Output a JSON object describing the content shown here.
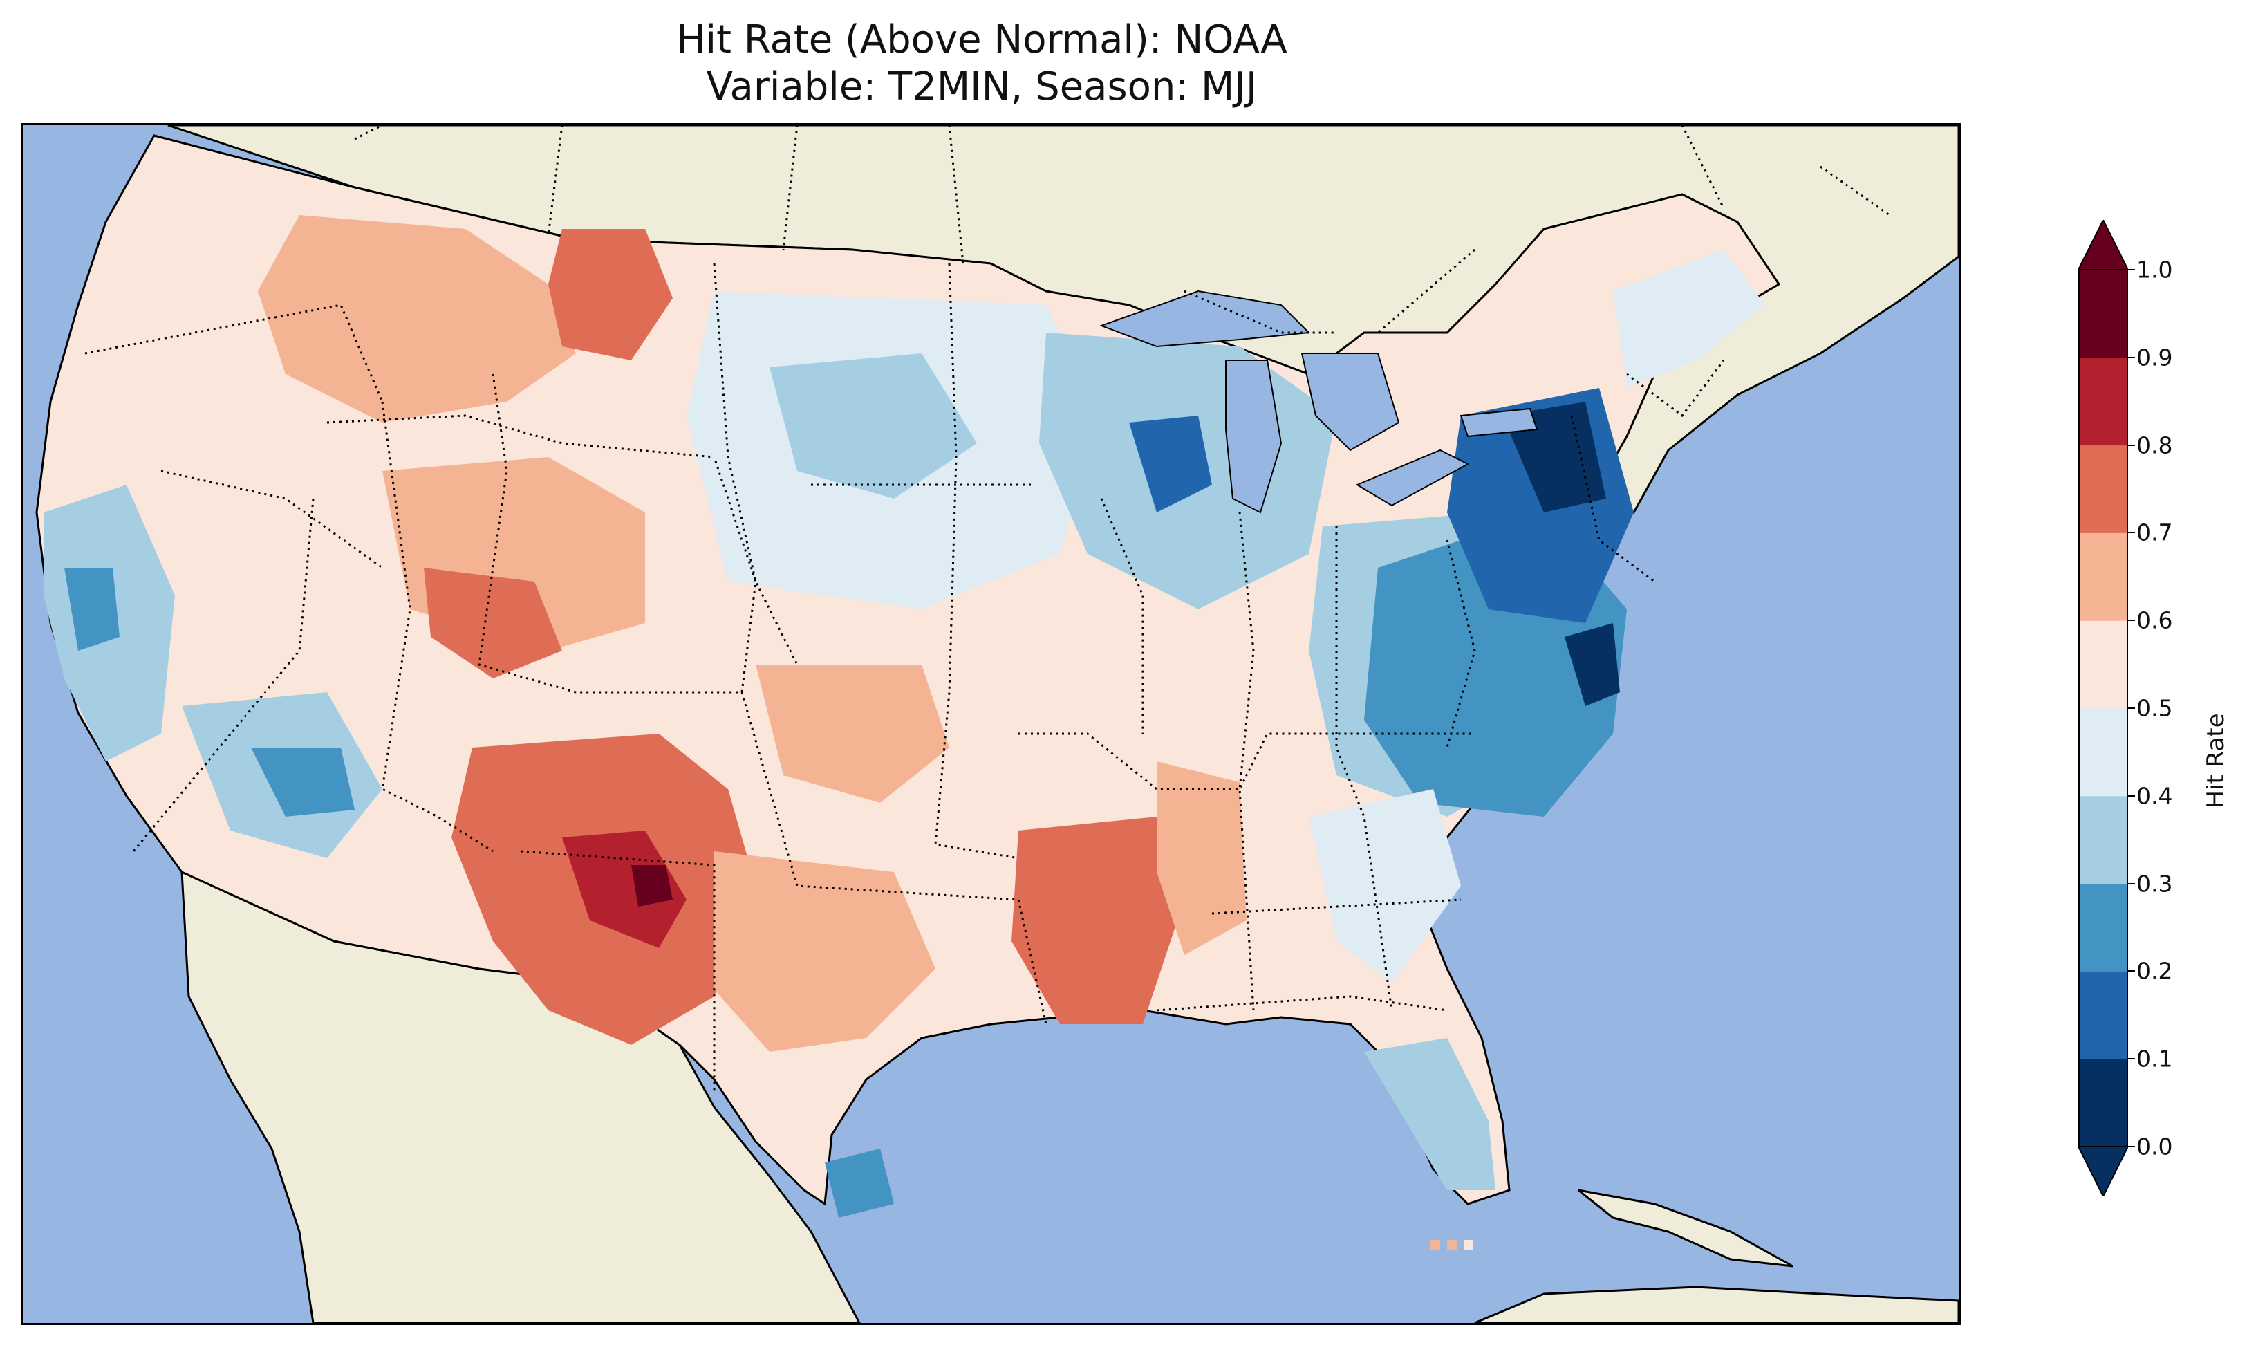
{
  "title": {
    "line1": "Hit Rate (Above Normal): NOAA",
    "line2": "Variable: T2MIN, Season: MJJ"
  },
  "colors": {
    "ocean": "#97b6e1",
    "land": "#efedda",
    "lakes": "#97b6e1"
  },
  "colorbar": {
    "label": "Hit Rate",
    "ticks": [
      "0.0",
      "0.1",
      "0.2",
      "0.3",
      "0.4",
      "0.5",
      "0.6",
      "0.7",
      "0.8",
      "0.9",
      "1.0"
    ],
    "bins": [
      {
        "range": "0.0-0.1",
        "color": "#053061"
      },
      {
        "range": "0.1-0.2",
        "color": "#2166ac"
      },
      {
        "range": "0.2-0.3",
        "color": "#4393c3"
      },
      {
        "range": "0.3-0.4",
        "color": "#a6cee3"
      },
      {
        "range": "0.4-0.5",
        "color": "#e0ecf4"
      },
      {
        "range": "0.5-0.6",
        "color": "#fbe6dc"
      },
      {
        "range": "0.6-0.7",
        "color": "#f4b393"
      },
      {
        "range": "0.7-0.8",
        "color": "#df6d55"
      },
      {
        "range": "0.8-0.9",
        "color": "#b3212f"
      },
      {
        "range": "0.9-1.0",
        "color": "#67001f"
      }
    ],
    "extend": "both"
  },
  "regions": [
    {
      "name": "pacific-northwest",
      "hit_rate": 0.55
    },
    {
      "name": "northern-rockies",
      "hit_rate": 0.65
    },
    {
      "name": "california-coast",
      "hit_rate": 0.35
    },
    {
      "name": "great-basin",
      "hit_rate": 0.55
    },
    {
      "name": "four-corners",
      "hit_rate": 0.75
    },
    {
      "name": "new-mexico",
      "hit_rate": 0.85
    },
    {
      "name": "west-texas",
      "hit_rate": 0.75
    },
    {
      "name": "central-plains",
      "hit_rate": 0.45
    },
    {
      "name": "upper-midwest",
      "hit_rate": 0.35
    },
    {
      "name": "arkansas",
      "hit_rate": 0.75
    },
    {
      "name": "ohio-valley",
      "hit_rate": 0.3
    },
    {
      "name": "mid-atlantic",
      "hit_rate": 0.15
    },
    {
      "name": "new-york-pennsylvania",
      "hit_rate": 0.05
    },
    {
      "name": "southeast",
      "hit_rate": 0.55
    },
    {
      "name": "florida",
      "hit_rate": 0.35
    },
    {
      "name": "new-england",
      "hit_rate": 0.45
    }
  ]
}
